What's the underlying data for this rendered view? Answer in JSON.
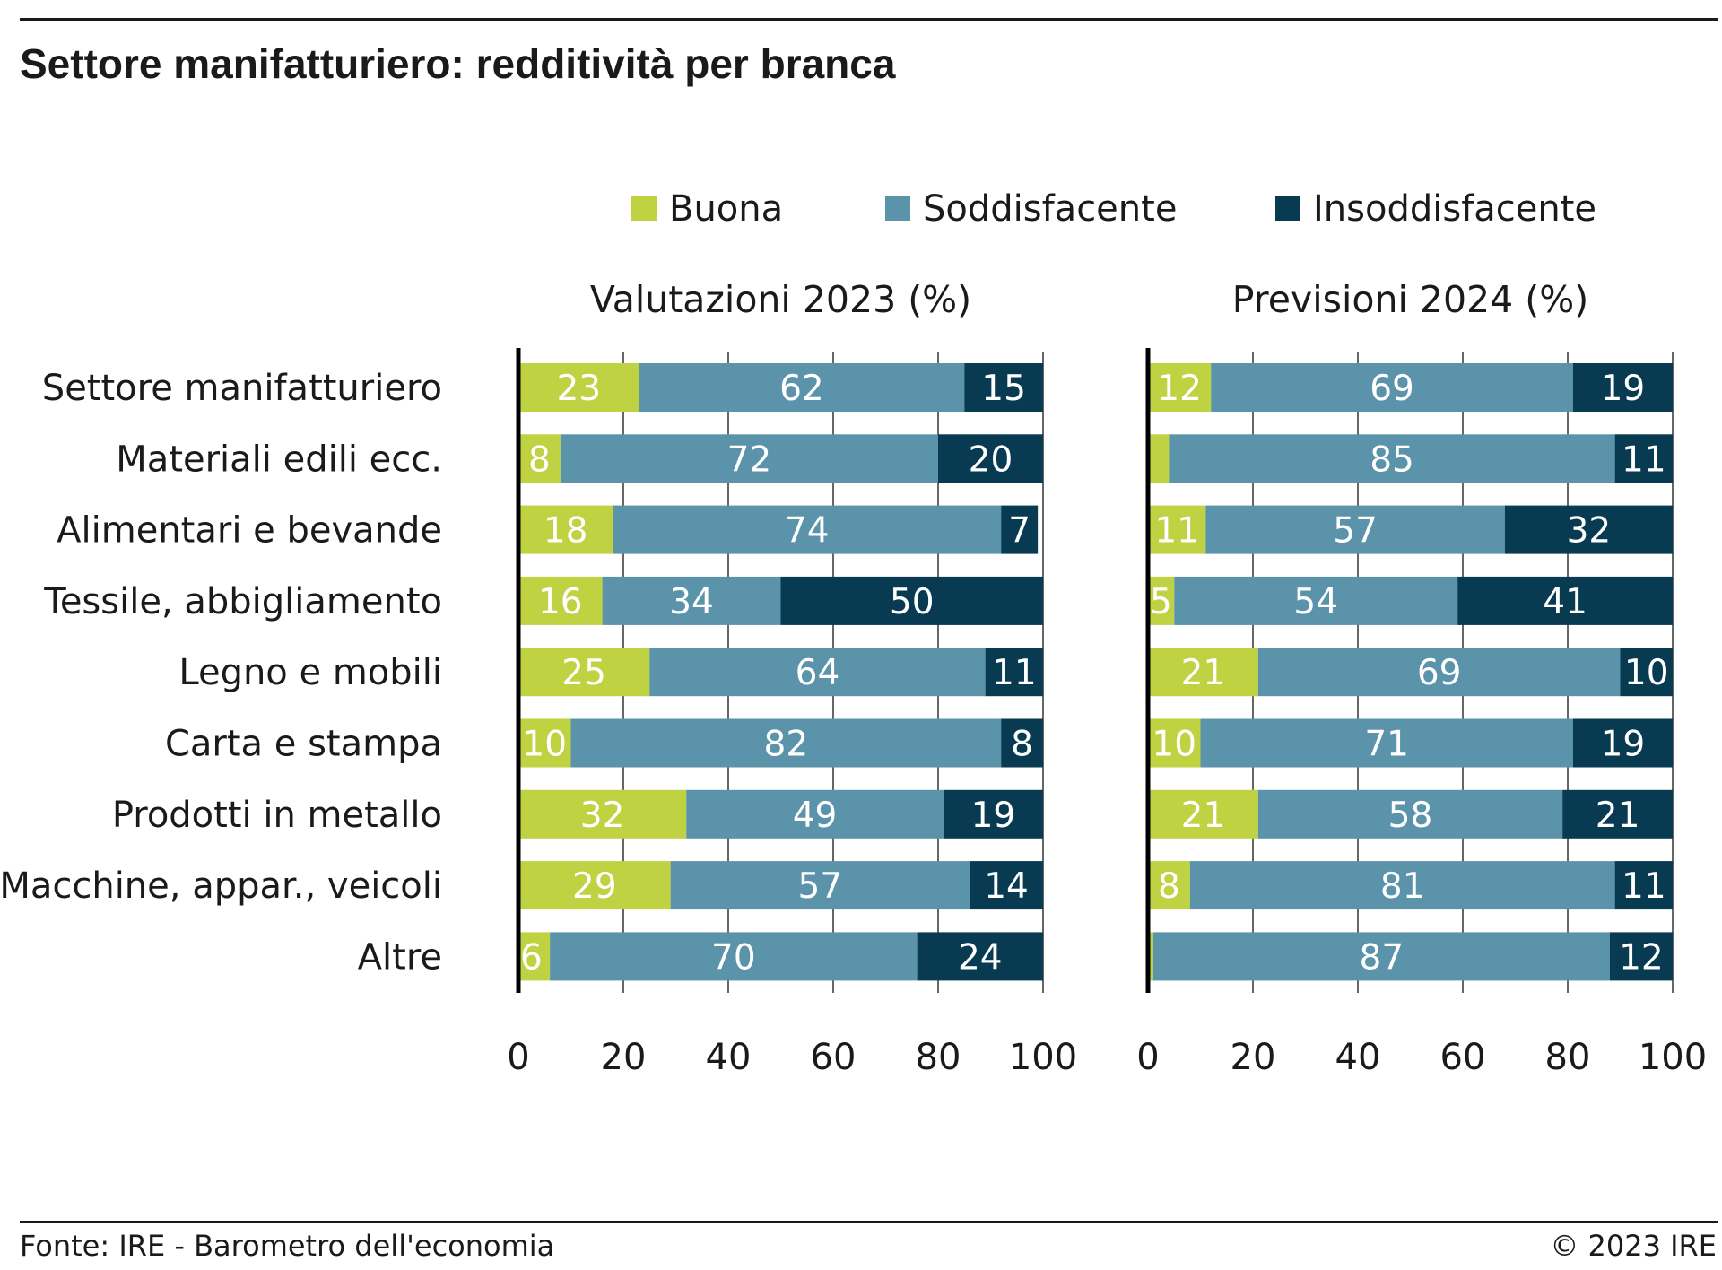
{
  "title": "Settore manifatturiero: redditività per branca",
  "source": "Fonte: IRE - Barometro dell'economia",
  "copyright": "© 2023 IRE",
  "colors": {
    "Buona": "#bfd242",
    "Soddisfacente": "#5a93aa",
    "Insoddisfacente": "#083a52"
  },
  "chart_data": {
    "type": "bar",
    "orientation": "horizontal",
    "stacked": true,
    "legend": {
      "placement": "top",
      "entries": [
        "Buona",
        "Soddisfacente",
        "Insoddisfacente"
      ]
    },
    "categories": [
      "Settore manifatturiero",
      "Materiali edili ecc.",
      "Alimentari e bevande",
      "Tessile, abbigliamento",
      "Legno e mobili",
      "Carta e stampa",
      "Prodotti in metallo",
      "Macchine, appar., veicoli",
      "Altre"
    ],
    "xlim": [
      0,
      100
    ],
    "xticks": [
      0,
      20,
      40,
      60,
      80,
      100
    ],
    "grid": true,
    "panels": [
      {
        "title": "Valutazioni 2023 (%)",
        "series": [
          {
            "name": "Buona",
            "values": [
              23,
              8,
              18,
              16,
              25,
              10,
              32,
              29,
              6
            ]
          },
          {
            "name": "Soddisfacente",
            "values": [
              62,
              72,
              74,
              34,
              64,
              82,
              49,
              57,
              70
            ]
          },
          {
            "name": "Insoddisfacente",
            "values": [
              15,
              20,
              7,
              50,
              11,
              8,
              19,
              14,
              24
            ]
          }
        ]
      },
      {
        "title": "Previsioni 2024 (%)",
        "series": [
          {
            "name": "Buona",
            "values": [
              12,
              4,
              11,
              5,
              21,
              10,
              21,
              8,
              1
            ]
          },
          {
            "name": "Soddisfacente",
            "values": [
              69,
              85,
              57,
              54,
              69,
              71,
              58,
              81,
              87
            ]
          },
          {
            "name": "Insoddisfacente",
            "values": [
              19,
              11,
              32,
              41,
              10,
              19,
              21,
              11,
              12
            ]
          }
        ]
      }
    ]
  }
}
